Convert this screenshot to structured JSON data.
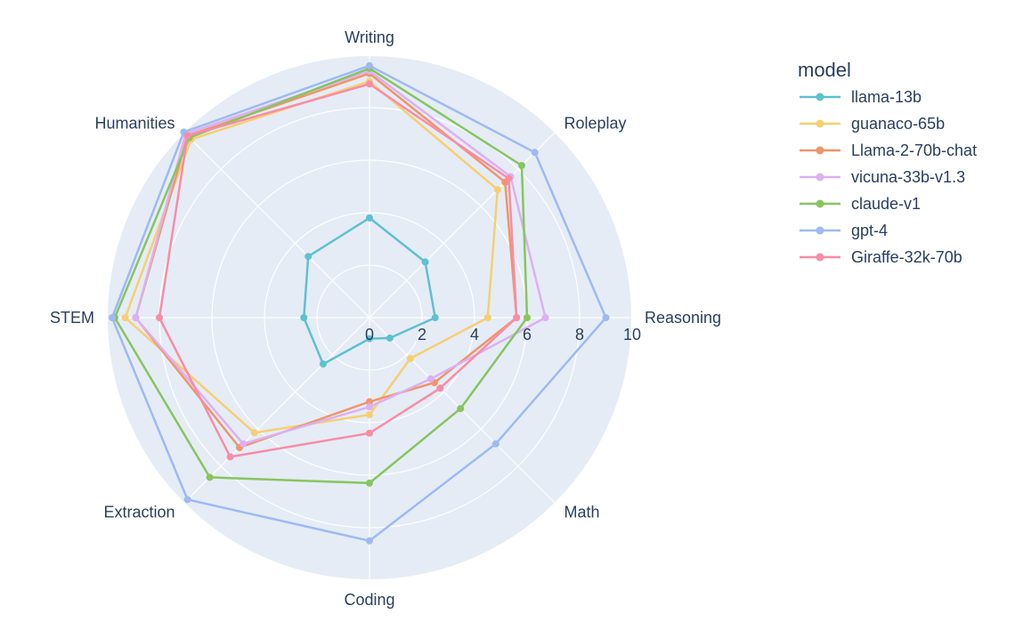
{
  "chart_data": {
    "type": "radar",
    "categories": [
      "Writing",
      "Roleplay",
      "Reasoning",
      "Math",
      "Coding",
      "Extraction",
      "STEM",
      "Humanities"
    ],
    "radial_range": [
      0,
      10
    ],
    "radial_ticks": [
      0,
      2,
      4,
      6,
      8,
      10
    ],
    "grid": true,
    "legend_title": "model",
    "legend_position": "right",
    "series": [
      {
        "name": "llama-13b",
        "color": "#5ec1d0",
        "values": [
          3.8,
          3.0,
          2.5,
          1.1,
          0.8,
          2.5,
          2.5,
          3.3
        ]
      },
      {
        "name": "guanaco-65b",
        "color": "#f6cf71",
        "values": [
          9.0,
          6.9,
          4.5,
          2.2,
          3.7,
          6.2,
          9.3,
          9.6
        ]
      },
      {
        "name": "Llama-2-70b-chat",
        "color": "#f0956a",
        "values": [
          9.3,
          7.3,
          5.6,
          3.5,
          3.2,
          7.0,
          8.9,
          9.8
        ]
      },
      {
        "name": "vicuna-33b-v1.3",
        "color": "#dcb0f2",
        "values": [
          9.4,
          7.6,
          6.7,
          3.3,
          3.4,
          6.8,
          8.9,
          9.9
        ]
      },
      {
        "name": "claude-v1",
        "color": "#87c55f",
        "values": [
          9.5,
          8.2,
          6.0,
          4.9,
          6.3,
          8.6,
          9.7,
          9.7
        ]
      },
      {
        "name": "gpt-4",
        "color": "#9eb9f3",
        "values": [
          9.6,
          8.9,
          9.0,
          6.8,
          8.5,
          9.8,
          9.8,
          10.0
        ]
      },
      {
        "name": "Giraffe-32k-70b",
        "color": "#f88ca6",
        "values": [
          8.9,
          7.5,
          5.6,
          3.8,
          4.4,
          7.5,
          8.0,
          9.8
        ]
      }
    ]
  }
}
